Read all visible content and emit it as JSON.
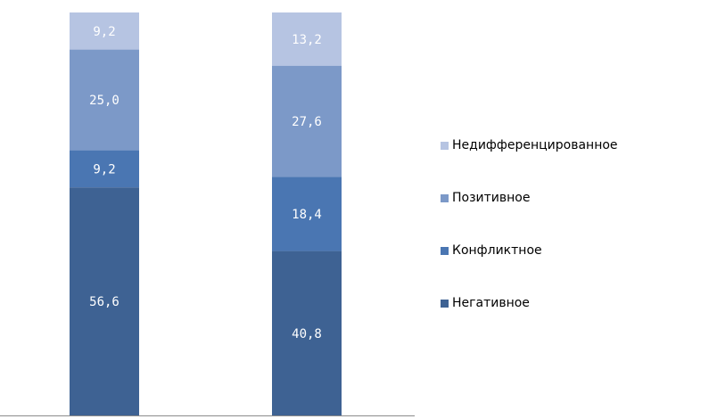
{
  "chart_data": {
    "type": "bar",
    "stacked": true,
    "title": "",
    "xlabel": "",
    "ylabel": "",
    "ylim": [
      0,
      100
    ],
    "grid": false,
    "legend_position": "right",
    "categories": [
      "",
      ""
    ],
    "series": [
      {
        "name": "Негативное",
        "values": [
          56.6,
          40.8
        ],
        "labels": [
          "56,6",
          "40,8"
        ],
        "color": "#3e6293"
      },
      {
        "name": "Конфликтное",
        "values": [
          9.2,
          18.4
        ],
        "labels": [
          "9,2",
          "18,4"
        ],
        "color": "#4a76b2"
      },
      {
        "name": "Позитивное",
        "values": [
          25.0,
          27.6
        ],
        "labels": [
          "25,0",
          "27,6"
        ],
        "color": "#7c99c8"
      },
      {
        "name": "Недифференцированное",
        "values": [
          9.2,
          13.2
        ],
        "labels": [
          "9,2",
          "13,2"
        ],
        "color": "#b6c4e2"
      }
    ],
    "legend_order": [
      3,
      2,
      1,
      0
    ]
  }
}
